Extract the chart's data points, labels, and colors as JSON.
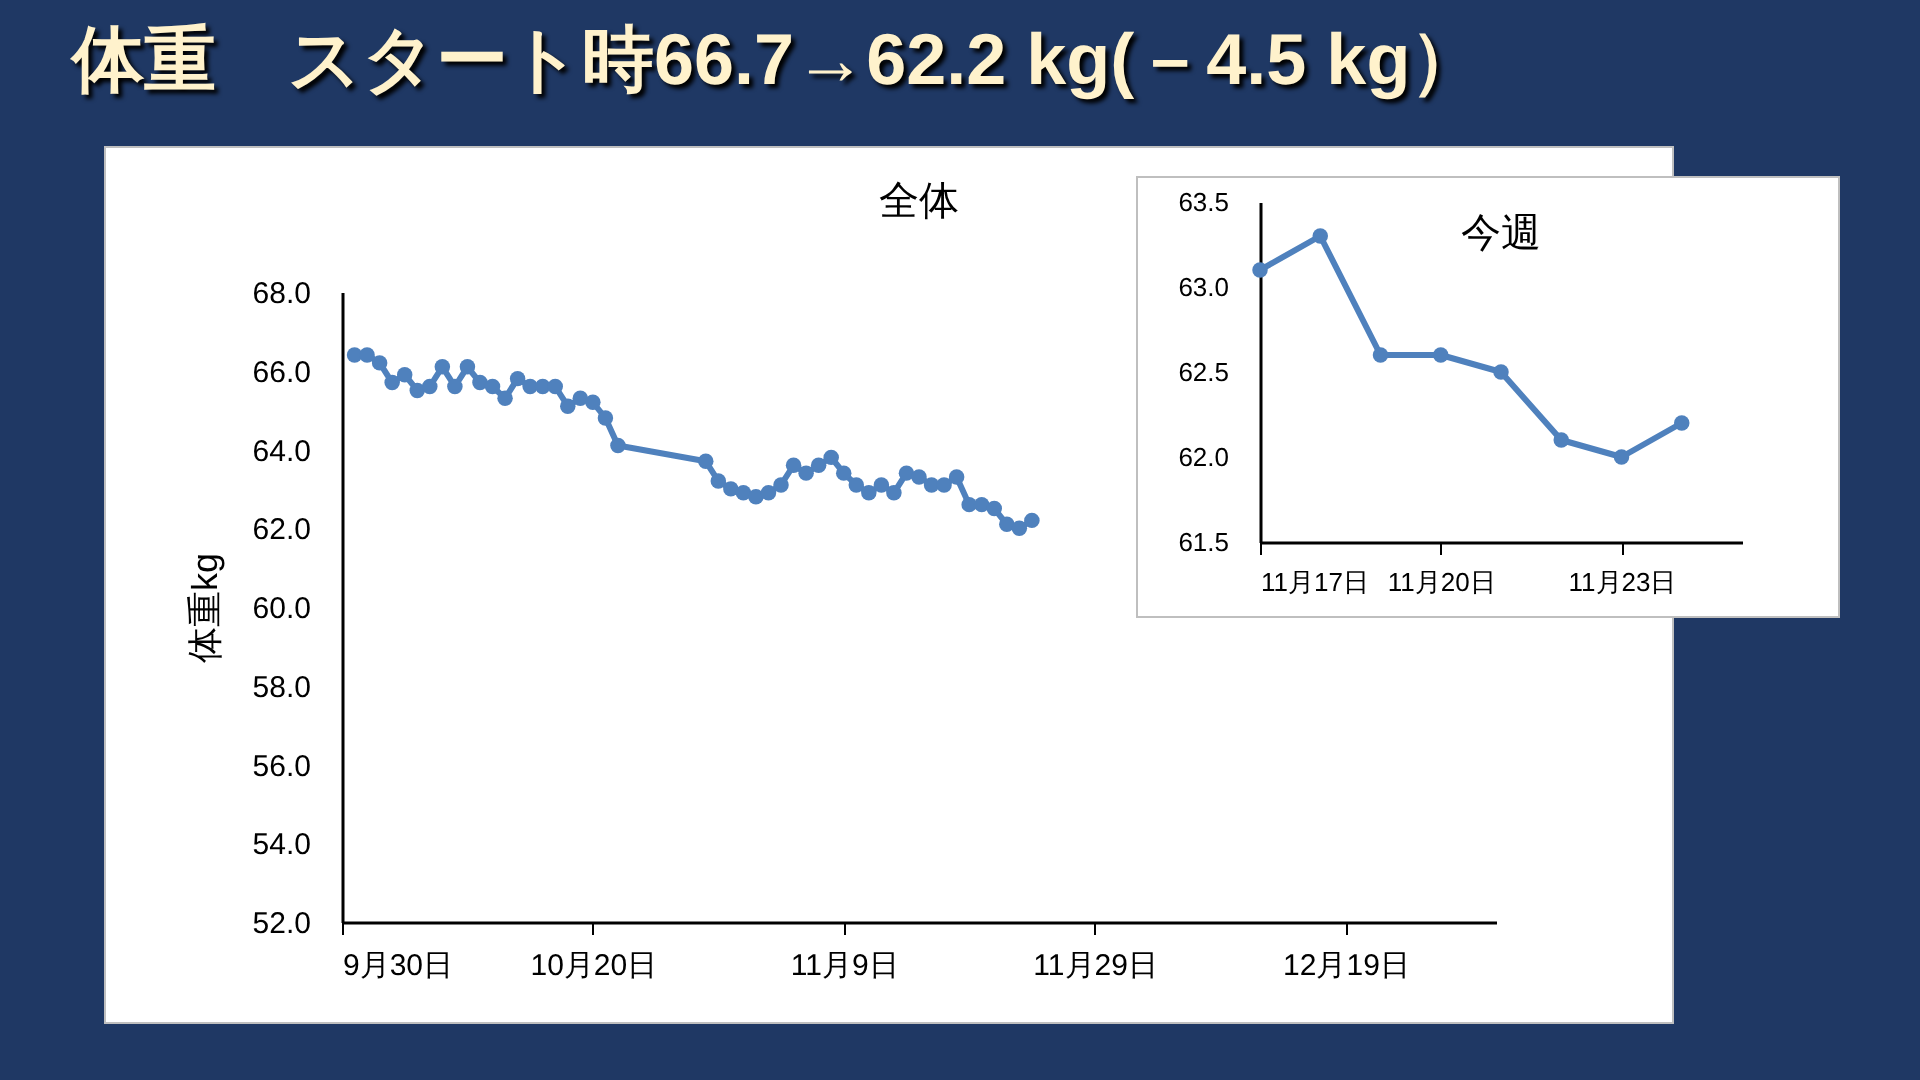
{
  "chart_data": [
    {
      "type": "line",
      "title": "体重　スタート時66.7→62.2 kg(－4.5 kg）",
      "subtitle": "全体",
      "ylabel": "体重kg",
      "x": [
        "--10-01",
        "--10-02",
        "--10-03",
        "--10-04",
        "--10-05",
        "--10-06",
        "--10-07",
        "--10-08",
        "--10-09",
        "--10-10",
        "--10-11",
        "--10-12",
        "--10-13",
        "--10-14",
        "--10-15",
        "--10-16",
        "--10-17",
        "--10-18",
        "--10-19",
        "--10-20",
        "--10-21",
        "--10-22",
        "--10-29",
        "--10-30",
        "--10-31",
        "--11-01",
        "--11-02",
        "--11-03",
        "--11-04",
        "--11-05",
        "--11-06",
        "--11-07",
        "--11-08",
        "--11-09",
        "--11-10",
        "--11-11",
        "--11-12",
        "--11-13",
        "--11-14",
        "--11-15",
        "--11-16",
        "--11-17",
        "--11-18",
        "--11-19",
        "--11-20",
        "--11-21",
        "--11-22",
        "--11-23",
        "--11-24"
      ],
      "series": [
        {
          "color": "#4f81bd",
          "values": [
            66.4,
            66.4,
            66.2,
            65.7,
            65.9,
            65.5,
            65.6,
            66.1,
            65.6,
            66.1,
            65.7,
            65.6,
            65.3,
            65.8,
            65.6,
            65.6,
            65.6,
            65.1,
            65.3,
            65.2,
            64.8,
            64.1,
            63.7,
            63.2,
            63.0,
            62.9,
            62.8,
            62.9,
            63.1,
            63.6,
            63.4,
            63.6,
            63.8,
            63.4,
            63.1,
            62.9,
            63.1,
            62.9,
            63.4,
            63.3,
            63.1,
            63.1,
            63.3,
            62.6,
            62.6,
            62.5,
            62.1,
            62.0,
            62.2
          ]
        }
      ],
      "xlim": [
        "--09-30",
        "--12-31"
      ],
      "xticks": [
        {
          "value": "--09-30",
          "label": "9月30日"
        },
        {
          "value": "--10-20",
          "label": "10月20日"
        },
        {
          "value": "--11-09",
          "label": "11月9日"
        },
        {
          "value": "--11-29",
          "label": "11月29日"
        },
        {
          "value": "--12-19",
          "label": "12月19日"
        }
      ],
      "ylim": [
        52,
        68
      ],
      "yticks": [
        {
          "value": 52,
          "label": "52.0"
        },
        {
          "value": 54,
          "label": "54.0"
        },
        {
          "value": 56,
          "label": "56.0"
        },
        {
          "value": 58,
          "label": "58.0"
        },
        {
          "value": 60,
          "label": "60.0"
        },
        {
          "value": 62,
          "label": "62.0"
        },
        {
          "value": 64,
          "label": "64.0"
        },
        {
          "value": 66,
          "label": "66.0"
        },
        {
          "value": 68,
          "label": "68.0"
        }
      ],
      "marker": "circle",
      "line_style": "solid"
    },
    {
      "type": "line",
      "subtitle": "今週",
      "x": [
        "--11-17",
        "--11-18",
        "--11-19",
        "--11-20",
        "--11-21",
        "--11-22",
        "--11-23",
        "--11-24"
      ],
      "series": [
        {
          "color": "#4f81bd",
          "values": [
            63.1,
            63.3,
            62.6,
            62.6,
            62.5,
            62.1,
            62.0,
            62.2
          ]
        }
      ],
      "xlim": [
        "--11-17",
        "--11-25"
      ],
      "xticks": [
        {
          "value": "--11-17",
          "label": "11月17日"
        },
        {
          "value": "--11-20",
          "label": "11月20日"
        },
        {
          "value": "--11-23",
          "label": "11月23日"
        }
      ],
      "ylim": [
        61.5,
        63.5
      ],
      "yticks": [
        61.5,
        {
          "value": 62,
          "label": "62.0"
        },
        62.5,
        {
          "value": 63,
          "label": "63.0"
        },
        63.5
      ],
      "marker": "circle",
      "line_style": "solid"
    }
  ]
}
